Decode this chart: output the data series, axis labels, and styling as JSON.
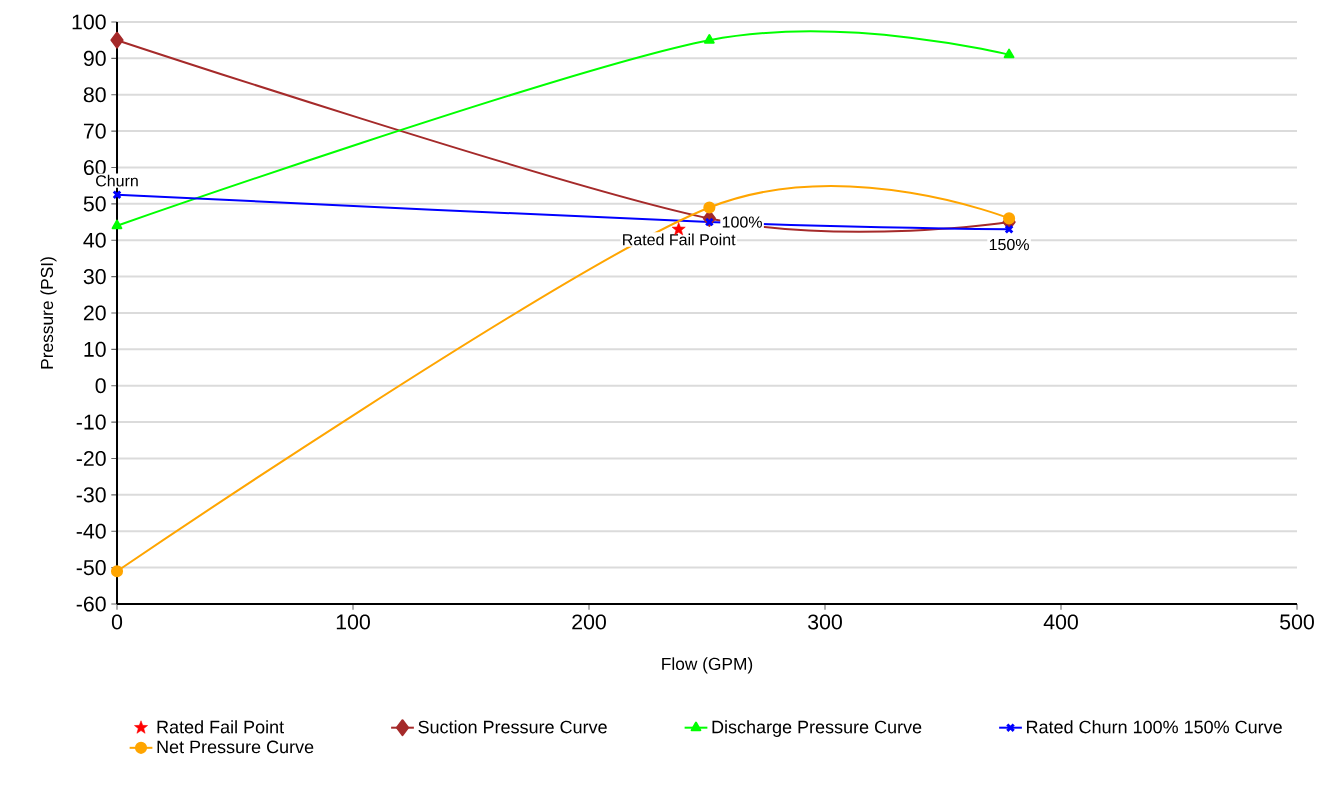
{
  "chart_data": {
    "type": "line",
    "xlabel": "Flow (GPM)",
    "ylabel": "Pressure (PSI)",
    "xlim": [
      0,
      500
    ],
    "xticks": [
      0,
      100,
      200,
      300,
      400,
      500
    ],
    "ylim": [
      -60,
      100
    ],
    "yticks": [
      -60,
      -50,
      -40,
      -30,
      -20,
      -10,
      0,
      10,
      20,
      30,
      40,
      50,
      60,
      70,
      80,
      90,
      100
    ],
    "grid": "y",
    "legend": "bottom",
    "series": [
      {
        "name": "Rated Fail Point",
        "type": "scatter",
        "color": "#ff0000",
        "marker": "star",
        "x": [
          238
        ],
        "values": [
          43
        ]
      },
      {
        "name": "Suction Pressure Curve",
        "color": "#a52a2a",
        "marker": "diamond",
        "x": [
          0,
          251,
          378
        ],
        "values": [
          95,
          46,
          45
        ]
      },
      {
        "name": "Discharge Pressure Curve",
        "color": "#00ff00",
        "marker": "triangle",
        "x": [
          0,
          251,
          378
        ],
        "values": [
          44,
          95,
          91
        ]
      },
      {
        "name": "Rated Churn  100%  150% Curve",
        "color": "#0000ff",
        "marker": "cross",
        "x": [
          0,
          251,
          378
        ],
        "values": [
          52.5,
          45,
          43
        ]
      },
      {
        "name": "Net Pressure Curve",
        "color": "#ffa500",
        "marker": "circle",
        "x": [
          0,
          251,
          378
        ],
        "values": [
          -51,
          49,
          46
        ]
      }
    ],
    "annotations": [
      {
        "text": "Churn",
        "x": 0,
        "y": 52.5
      },
      {
        "text": "100%",
        "x": 251,
        "y": 45
      },
      {
        "text": "150%",
        "x": 378,
        "y": 43
      },
      {
        "text": "Rated Fail Point",
        "x": 238,
        "y": 43
      }
    ]
  }
}
